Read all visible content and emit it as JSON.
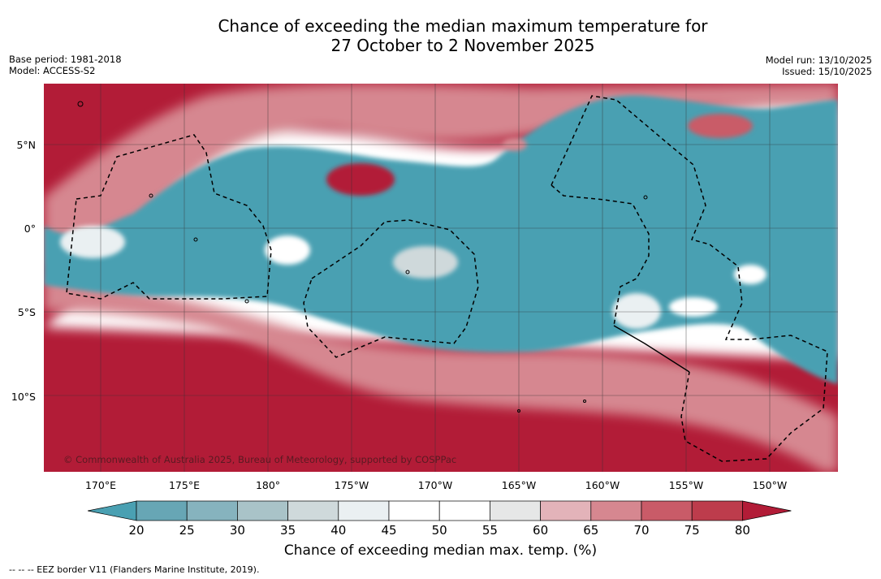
{
  "title_line1": "Chance of exceeding the median maximum temperature for",
  "title_line2": "27 October to 2 November 2025",
  "base_period": "Base period: 1981-2018",
  "model": "Model: ACCESS-S2",
  "model_run": "Model run: 13/10/2025",
  "issued": "Issued: 15/10/2025",
  "copyright": "© Commonwealth of Australia 2025, Bureau of Meteorology, supported by COSPPac",
  "lat_labels": [
    "5°N",
    "0°",
    "5°S",
    "10°S"
  ],
  "lon_labels": [
    "170°E",
    "175°E",
    "180°",
    "175°W",
    "170°W",
    "165°W",
    "160°W",
    "155°W",
    "150°W"
  ],
  "colorbar": {
    "ticks": [
      "20",
      "25",
      "30",
      "35",
      "40",
      "45",
      "50",
      "55",
      "60",
      "65",
      "70",
      "75",
      "80"
    ],
    "colors": [
      "#4aa0b2",
      "#67a6b5",
      "#86b3be",
      "#a9c3c8",
      "#cfd9db",
      "#eaf0f2",
      "#ffffff",
      "#ffffff",
      "#e6e7e7",
      "#e3b3b9",
      "#d68790",
      "#c95b68",
      "#bd3c4c",
      "#b21c37"
    ],
    "title": "Chance of exceeding median max. temp. (%)"
  },
  "eez_note": "--  --  -- EEZ border V11 (Flanders Marine Institute, 2019).",
  "map_colors": {
    "cool": "#4aa0b2",
    "warm": "#b21c37",
    "neutral": "#ffffff",
    "grid": "#333333",
    "eez": "#000000"
  }
}
